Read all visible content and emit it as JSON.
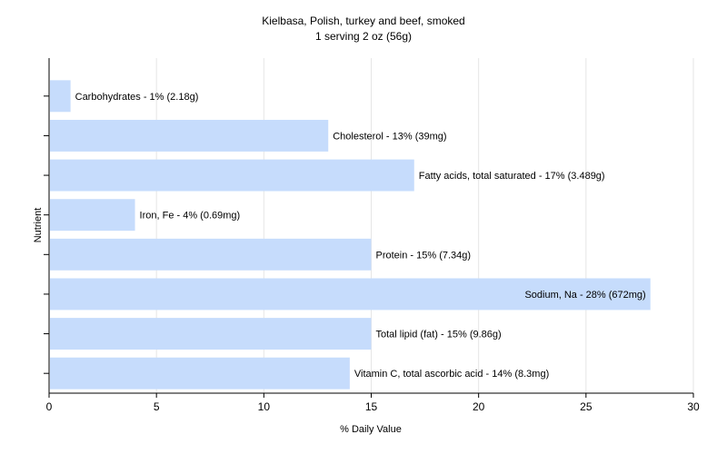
{
  "chart_data": {
    "type": "bar",
    "orientation": "horizontal",
    "title": "Kielbasa, Polish, turkey and beef, smoked",
    "subtitle": "1 serving 2 oz (56g)",
    "xlabel": "% Daily Value",
    "ylabel": "Nutrient",
    "xlim": [
      0,
      30
    ],
    "xticks": [
      0,
      5,
      10,
      15,
      20,
      25,
      30
    ],
    "grid": true,
    "bar_color": "#c6dcfc",
    "categories": [
      "Carbohydrates",
      "Cholesterol",
      "Fatty acids, total saturated",
      "Iron, Fe",
      "Protein",
      "Sodium, Na",
      "Total lipid (fat)",
      "Vitamin C, total ascorbic acid"
    ],
    "values": [
      1,
      13,
      17,
      4,
      15,
      28,
      15,
      14
    ],
    "labels": [
      "Carbohydrates - 1% (2.18g)",
      "Cholesterol - 13% (39mg)",
      "Fatty acids, total saturated - 17% (3.489g)",
      "Iron, Fe - 4% (0.69mg)",
      "Protein - 15% (7.34g)",
      "Sodium, Na - 28% (672mg)",
      "Total lipid (fat) - 15% (9.86g)",
      "Vitamin C, total ascorbic acid - 14% (8.3mg)"
    ]
  }
}
